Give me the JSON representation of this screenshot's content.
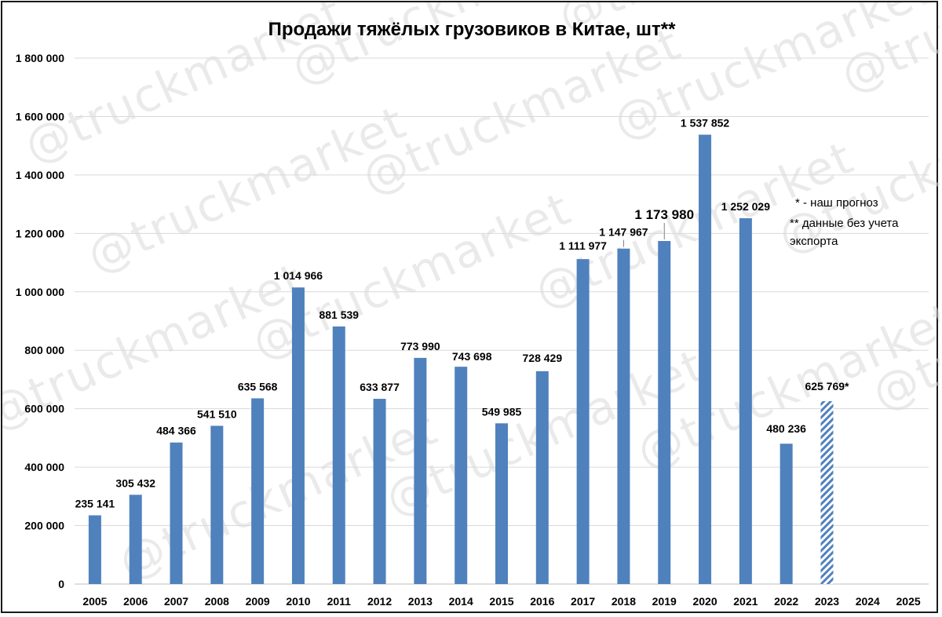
{
  "watermark": "@truckmarket",
  "chart_data": {
    "type": "bar",
    "title": "Продажи тяжёлых грузовиков в Китае, шт**",
    "xlabel": "",
    "ylabel": "",
    "ylim": [
      0,
      1800000
    ],
    "yticks": [
      0,
      200000,
      400000,
      600000,
      800000,
      1000000,
      1200000,
      1400000,
      1600000,
      1800000
    ],
    "ytick_labels": [
      "0",
      "200 000",
      "400 000",
      "600 000",
      "800 000",
      "1 000 000",
      "1 200 000",
      "1 400 000",
      "1 600 000",
      "1 800 000"
    ],
    "grid": true,
    "bar_color": "#4f81bd",
    "forecast_color": "#4f81bd",
    "categories": [
      "2005",
      "2006",
      "2007",
      "2008",
      "2009",
      "2010",
      "2011",
      "2012",
      "2013",
      "2014",
      "2015",
      "2016",
      "2017",
      "2018",
      "2019",
      "2020",
      "2021",
      "2022",
      "2023",
      "2024",
      "2025"
    ],
    "values": [
      235141,
      305432,
      484366,
      541510,
      635568,
      1014966,
      881539,
      633877,
      773990,
      743698,
      549985,
      728429,
      1111977,
      1147967,
      1173980,
      1537852,
      1252029,
      480236,
      625769,
      null,
      null
    ],
    "data_labels": [
      "235 141",
      "305 432",
      "484 366",
      "541 510",
      "635 568",
      "1 014 966",
      "881 539",
      "633 877",
      "773 990",
      "743 698",
      "549 985",
      "728 429",
      "1 111 977",
      "1 147 967",
      "1 173 980",
      "1 537 852",
      "1 252 029",
      "480 236",
      "625 769*",
      "",
      ""
    ],
    "forecast": [
      false,
      false,
      false,
      false,
      false,
      false,
      false,
      false,
      false,
      false,
      false,
      false,
      false,
      false,
      false,
      false,
      false,
      false,
      true,
      false,
      false
    ],
    "annotations": [
      "* - наш прогноз",
      "** данные без учета",
      "экспорта"
    ]
  }
}
